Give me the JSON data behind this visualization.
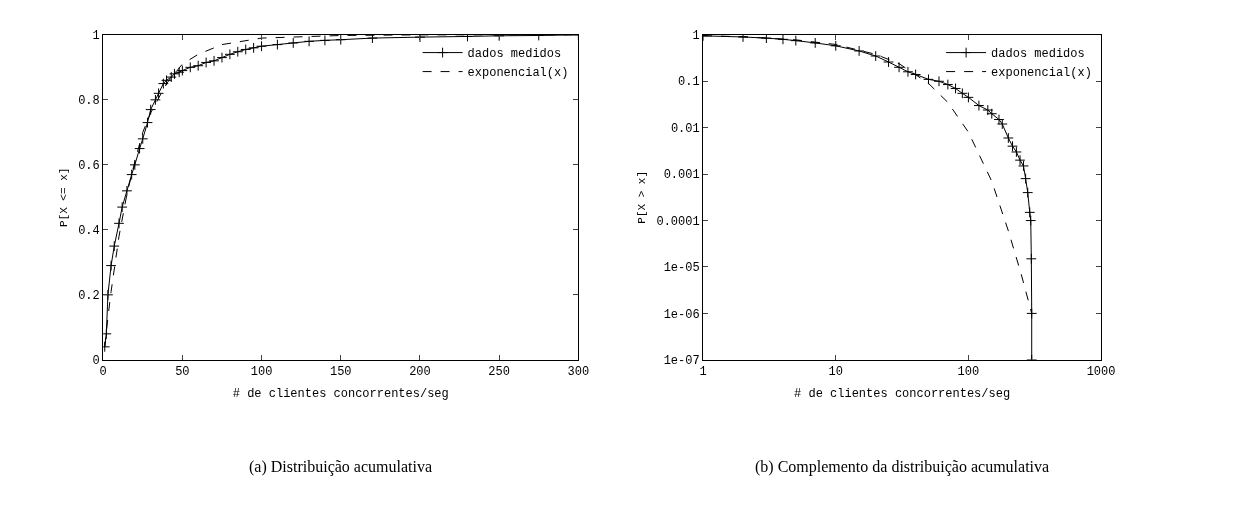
{
  "chart_data": [
    {
      "type": "line",
      "title": "(a) Distribuição acumulativa",
      "xlabel": "# de clientes concorrentes/seg",
      "ylabel": "P[X <= x]",
      "xlim": [
        0,
        300
      ],
      "ylim": [
        0,
        1
      ],
      "xticks": [
        0,
        50,
        100,
        150,
        200,
        250,
        300
      ],
      "yticks": [
        0,
        0.2,
        0.4,
        0.6,
        0.8,
        1
      ],
      "legend": "top right",
      "series": [
        {
          "name": "dados medidos",
          "color": "#000000",
          "marker": "cross",
          "line_style": "solid",
          "x": [
            1,
            2,
            3,
            5,
            7,
            10,
            12,
            15,
            18,
            20,
            23,
            25,
            28,
            30,
            33,
            35,
            38,
            40,
            43,
            45,
            48,
            50,
            55,
            60,
            65,
            70,
            75,
            80,
            85,
            90,
            95,
            100,
            110,
            120,
            130,
            140,
            150,
            170,
            200,
            230,
            250,
            275,
            300
          ],
          "values": [
            0.04,
            0.08,
            0.2,
            0.29,
            0.35,
            0.42,
            0.47,
            0.52,
            0.57,
            0.6,
            0.65,
            0.68,
            0.73,
            0.77,
            0.8,
            0.82,
            0.85,
            0.86,
            0.87,
            0.88,
            0.885,
            0.89,
            0.9,
            0.905,
            0.915,
            0.92,
            0.93,
            0.94,
            0.948,
            0.955,
            0.96,
            0.965,
            0.97,
            0.975,
            0.98,
            0.983,
            0.985,
            0.99,
            0.993,
            0.995,
            0.997,
            0.998,
            1.0
          ]
        },
        {
          "name": "exponencial(x)",
          "color": "#000000",
          "marker": "none",
          "line_style": "dashed",
          "x": [
            1,
            3,
            5,
            10,
            15,
            20,
            25,
            30,
            40,
            50,
            60,
            75,
            100,
            150,
            200,
            300
          ],
          "values": [
            0.04,
            0.13,
            0.21,
            0.38,
            0.51,
            0.61,
            0.7,
            0.76,
            0.85,
            0.91,
            0.94,
            0.97,
            0.99,
            0.998,
            1.0,
            1.0
          ]
        }
      ]
    },
    {
      "type": "line",
      "title": "(b) Complemento da distribuição acumulativa",
      "xlabel": "# de clientes concorrentes/seg",
      "ylabel": "P[X > x]",
      "log": "xy",
      "xlim": [
        1,
        1000
      ],
      "ylim": [
        1e-07,
        1
      ],
      "xticks": [
        1,
        10,
        100,
        1000
      ],
      "yticks": [
        1,
        0.1,
        0.01,
        0.001,
        0.0001,
        {
          "value": 1e-05,
          "label": "1e-05"
        },
        {
          "value": 1e-06,
          "label": "1e-06"
        },
        {
          "value": 1e-07,
          "label": "1e-07"
        }
      ],
      "legend": "top right",
      "series": [
        {
          "name": "dados medidos",
          "color": "#000000",
          "marker": "cross",
          "line_style": "solid",
          "x": [
            1,
            2,
            3,
            4,
            5,
            7,
            10,
            15,
            20,
            25,
            30,
            35,
            40,
            50,
            60,
            70,
            80,
            90,
            100,
            120,
            140,
            150,
            170,
            180,
            200,
            215,
            230,
            245,
            260,
            270,
            280,
            290,
            295,
            298,
            300,
            300
          ],
          "values": [
            0.95,
            0.9,
            0.85,
            0.8,
            0.75,
            0.67,
            0.58,
            0.45,
            0.35,
            0.26,
            0.2,
            0.16,
            0.14,
            0.11,
            0.1,
            0.085,
            0.07,
            0.055,
            0.045,
            0.03,
            0.024,
            0.02,
            0.015,
            0.012,
            0.006,
            0.004,
            0.003,
            0.002,
            0.0015,
            0.0008,
            0.0004,
            0.00015,
            0.0001,
            1.5e-05,
            1e-06,
            1e-07
          ]
        },
        {
          "name": "exponencial(x)",
          "color": "#000000",
          "marker": "none",
          "line_style": "dashed",
          "x": [
            1,
            2,
            5,
            10,
            20,
            30,
            50,
            70,
            100,
            150,
            200,
            250,
            300
          ],
          "values": [
            0.96,
            0.91,
            0.78,
            0.62,
            0.38,
            0.24,
            0.09,
            0.035,
            0.008,
            0.0007,
            6e-05,
            7e-06,
            1e-06
          ]
        }
      ]
    }
  ]
}
